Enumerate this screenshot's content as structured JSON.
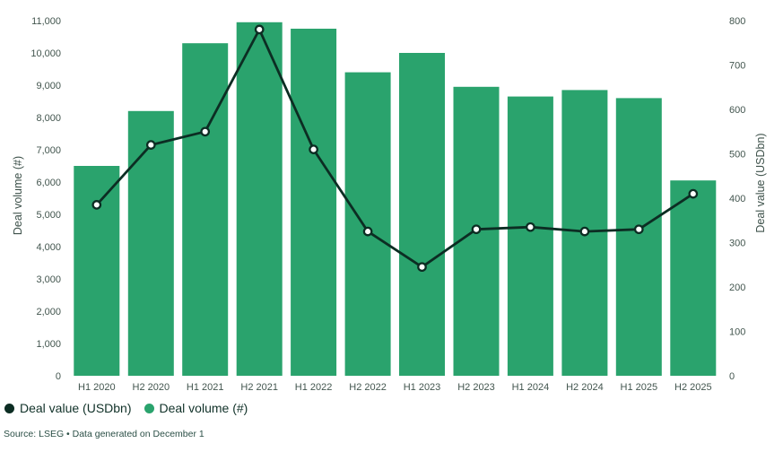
{
  "chart_data": {
    "type": "bar+line",
    "categories": [
      "H1 2020",
      "H2 2020",
      "H1 2021",
      "H2 2021",
      "H1 2022",
      "H2 2022",
      "H1 2023",
      "H2 2023",
      "H1 2024",
      "H2 2024",
      "H1 2025",
      "H2 2025"
    ],
    "series": [
      {
        "name": "Deal volume (#)",
        "type": "bar",
        "axis": "left",
        "values": [
          6500,
          8200,
          10300,
          10950,
          10750,
          9400,
          10000,
          8950,
          8650,
          8850,
          8600,
          6050
        ]
      },
      {
        "name": "Deal value (USDbn)",
        "type": "line",
        "axis": "right",
        "values": [
          385,
          520,
          550,
          780,
          510,
          325,
          245,
          330,
          335,
          325,
          330,
          410
        ]
      }
    ],
    "left_axis": {
      "label": "Deal volume (#)",
      "min": 0,
      "max": 11000,
      "step": 1000
    },
    "right_axis": {
      "label": "Deal value (USDbn)",
      "min": 0,
      "max": 800,
      "step": 100
    },
    "grid": false,
    "legend_position": "bottom-left",
    "colors": {
      "bar": "#2aa36d",
      "line": "#0c2d23",
      "marker_fill": "#ffffff"
    }
  },
  "legend": {
    "items": [
      {
        "label": "Deal value (USDbn)",
        "color": "#0c2d23"
      },
      {
        "label": "Deal volume (#)",
        "color": "#2aa36d"
      }
    ]
  },
  "footer": {
    "source_text": "Source: LSEG • Data generated on December 1"
  }
}
